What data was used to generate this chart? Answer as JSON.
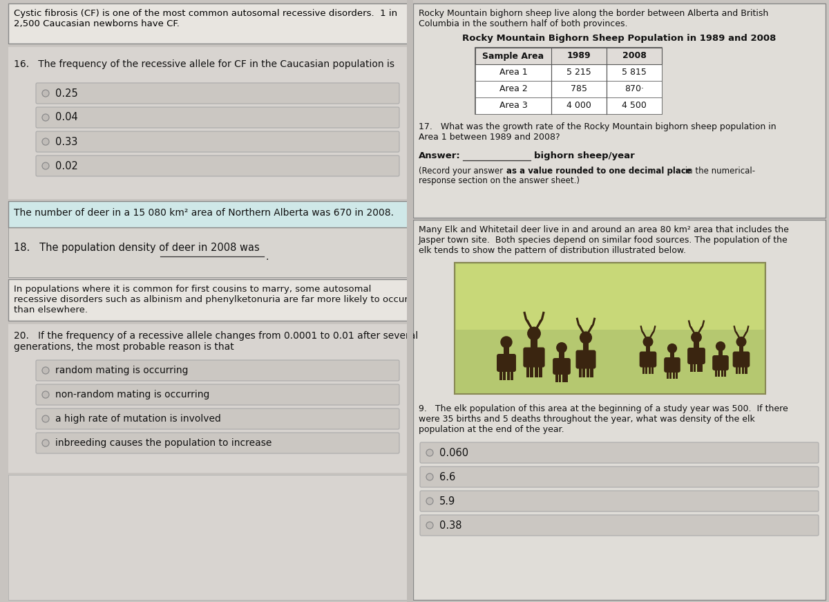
{
  "bg_color": "#c8c8c8",
  "left_panel_bg": "#e0ddd8",
  "right_panel_bg": "#e0ddd8",
  "option_bg": "#cbc7c2",
  "option_border": "#999999",
  "context_box_bg": "#e8e5e0",
  "deer_context_bg": "#d0e8e8",
  "white": "#ffffff",
  "sections": {
    "top_left_context": "Cystic fibrosis (CF) is one of the most common autosomal recessive disorders.  1 in\n2,500 Caucasian newborns have CF.",
    "q16_text": "16.   The frequency of the recessive allele for CF in the Caucasian population is",
    "q16_options": [
      "0.25",
      "0.04",
      "0.33",
      "0.02"
    ],
    "deer_context": "The number of deer in a 15 080 km² area of Northern Alberta was 670 in 2008.",
    "q18_text": "18.   The population density of deer in 2008 was",
    "cousins_context": "In populations where it is common for first cousins to marry, some autosomal\nrecessive disorders such as albinism and phenylketonuria are far more likely to occur\nthan elsewhere.",
    "q20_text": "20.   If the frequency of a recessive allele changes from 0.0001 to 0.01 after several\ngenerations, the most probable reason is that",
    "q20_options": [
      "random mating is occurring",
      "non-random mating is occurring",
      "a high rate of mutation is involved",
      "inbreeding causes the population to increase"
    ],
    "sheep_context": "Rocky Mountain bighorn sheep live along the border between Alberta and British\nColumbia in the southern half of both provinces.",
    "sheep_table_title": "Rocky Mountain Bighorn Sheep Population in 1989 and 2008",
    "sheep_table_headers": [
      "Sample Area",
      "1989",
      "2008"
    ],
    "sheep_table_rows": [
      [
        "Area 1",
        "5 215",
        "5 815"
      ],
      [
        "Area 2",
        "785",
        "870·"
      ],
      [
        "Area 3",
        "4 000",
        "4 500"
      ]
    ],
    "q17_text": "17.   What was the growth rate of the Rocky Mountain bighorn sheep population in\nArea 1 between 1989 and 2008?",
    "q17_answer_label": "Answer:",
    "q17_answer_unit": "bighorn sheep/year",
    "q17_note_plain": "(Record your answer ",
    "q17_note_bold": "as a value rounded to one decimal place",
    "q17_note_end": " in the numerical-\nresponse section on the answer sheet.)",
    "elk_context": "Many Elk and Whitetail deer live in and around an area 80 km² area that includes the\nJasper town site.  Both species depend on similar food sources. The population of the\nelk tends to show the pattern of distribution illustrated below.",
    "q19_text": "9.   The elk population of this area at the beginning of a study year was 500.  If there\nwere 35 births and 5 deaths throughout the year, what was density of the elk\npopulation at the end of the year.",
    "q19_options": [
      "0.060",
      "6.6",
      "5.9",
      "0.38"
    ],
    "elk_img_bg": "#b8c87a",
    "elk_img_border": "#888855",
    "deer_color": "#3a2510"
  }
}
